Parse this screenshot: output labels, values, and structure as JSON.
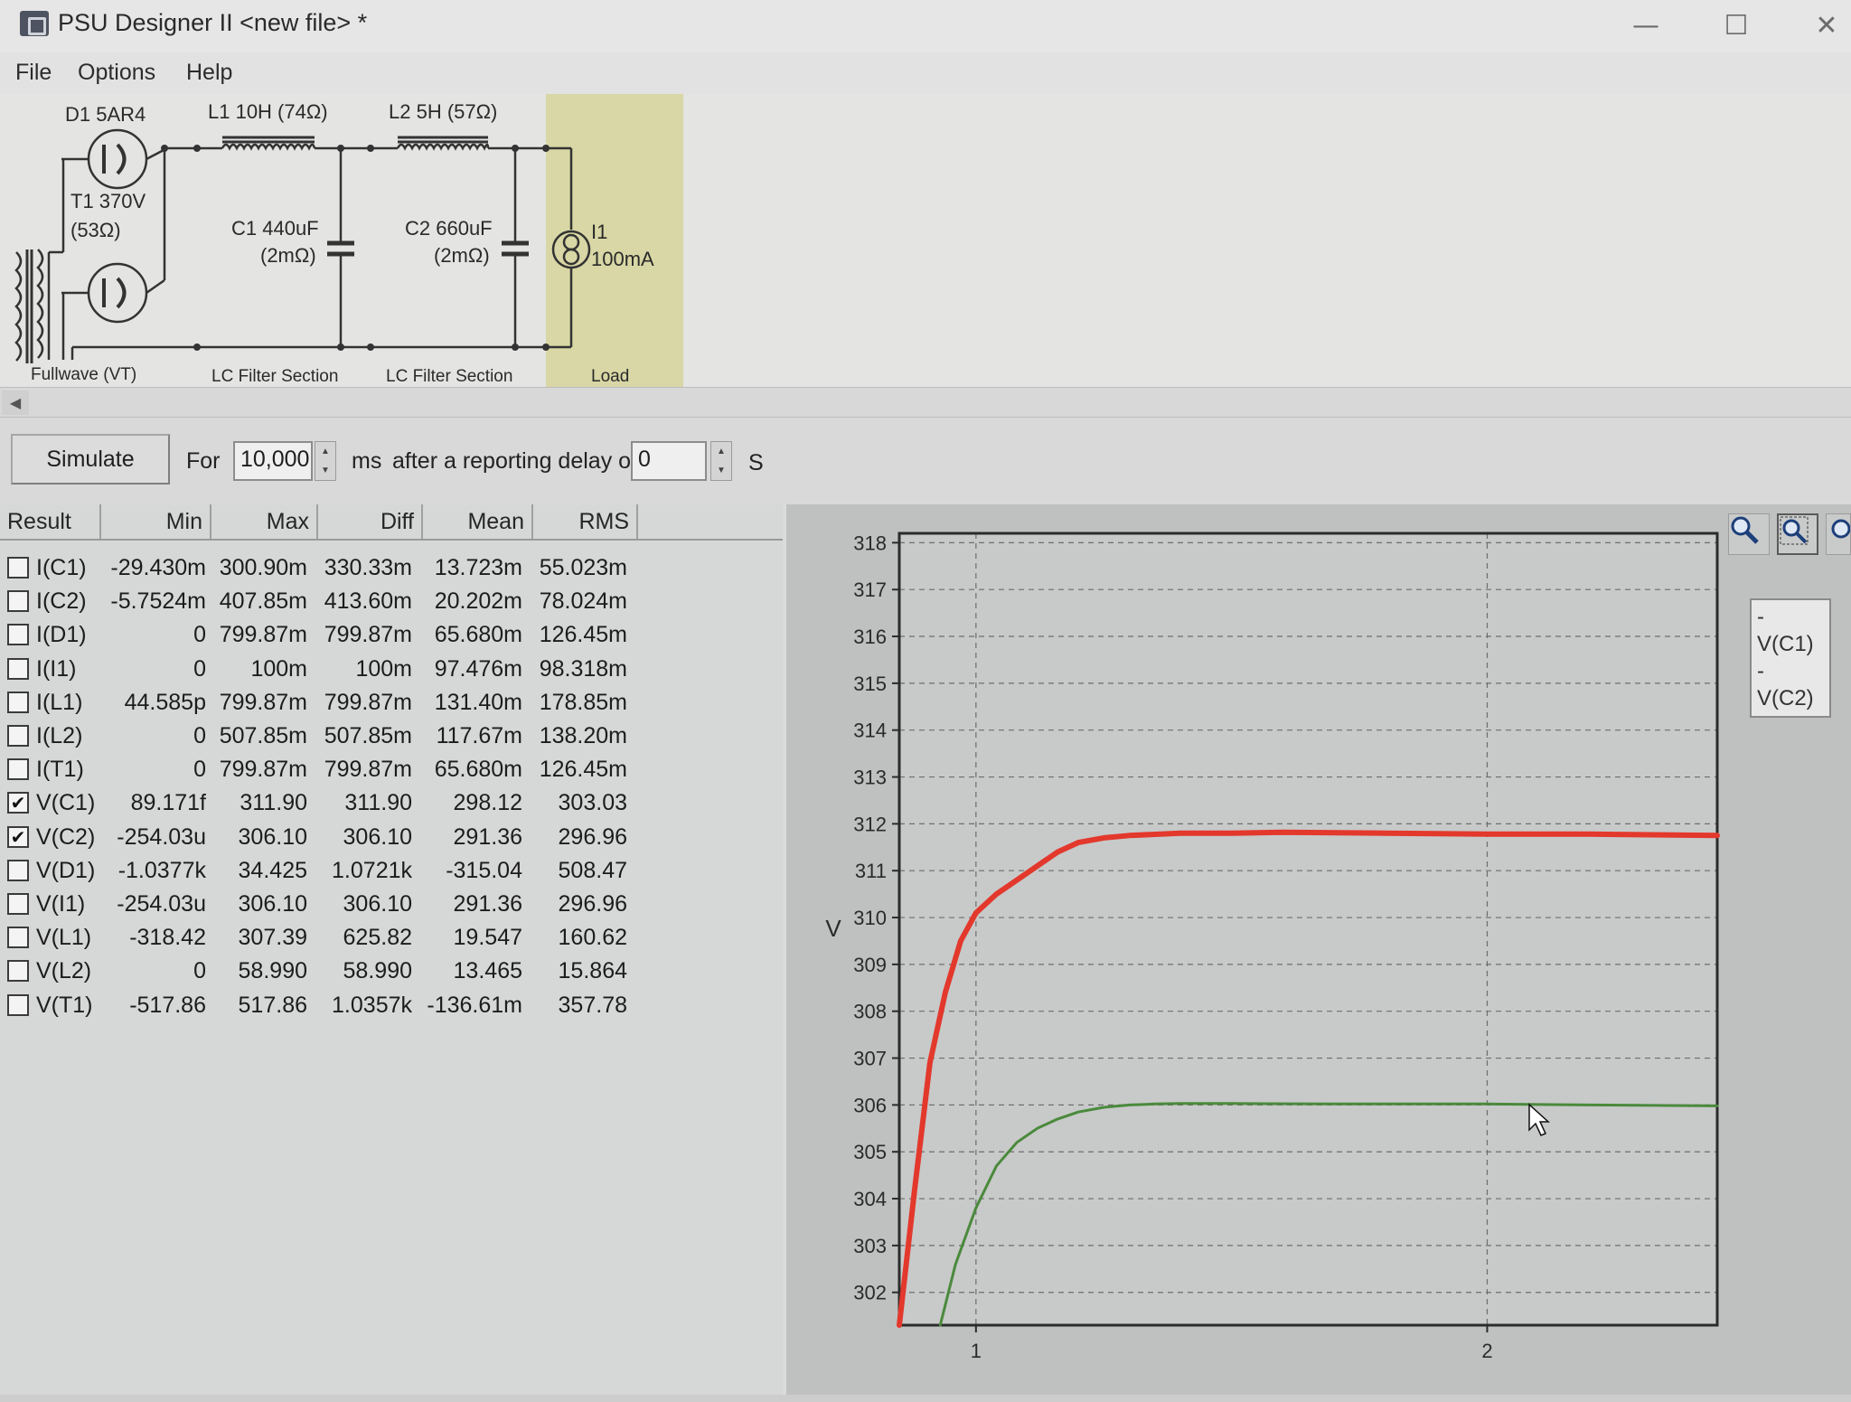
{
  "window": {
    "title": "PSU Designer II  <new file> *",
    "minimize_glyph": "—",
    "maximize_glyph": "☐",
    "close_glyph": "✕"
  },
  "menu": [
    "File",
    "Options",
    "Help"
  ],
  "schematic": {
    "d1": "D1 5AR4",
    "t1_line1": "T1 370V",
    "t1_line2": "(53Ω)",
    "l1": "L1 10H (74Ω)",
    "l2": "L2 5H (57Ω)",
    "c1_line1": "C1 440uF",
    "c1_line2": "(2mΩ)",
    "c2_line1": "C2 660uF",
    "c2_line2": "(2mΩ)",
    "i1_line1": "I1",
    "i1_line2": "100mA",
    "sections": [
      "Fullwave (VT)",
      "LC Filter Section",
      "LC Filter Section",
      "Load"
    ]
  },
  "controls": {
    "simulate_label": "Simulate",
    "for_label": "For",
    "duration_value": "10,000",
    "ms_label": "ms",
    "delay_label": "after a reporting delay of",
    "delay_value": "0",
    "s_label": "S"
  },
  "results": {
    "columns": [
      "Result",
      "Min",
      "Max",
      "Diff",
      "Mean",
      "RMS"
    ],
    "rows": [
      {
        "name": "I(C1)",
        "checked": false,
        "min": "-29.430m",
        "max": "300.90m",
        "diff": "330.33m",
        "mean": "13.723m",
        "rms": "55.023m"
      },
      {
        "name": "I(C2)",
        "checked": false,
        "min": "-5.7524m",
        "max": "407.85m",
        "diff": "413.60m",
        "mean": "20.202m",
        "rms": "78.024m"
      },
      {
        "name": "I(D1)",
        "checked": false,
        "min": "0",
        "max": "799.87m",
        "diff": "799.87m",
        "mean": "65.680m",
        "rms": "126.45m"
      },
      {
        "name": "I(I1)",
        "checked": false,
        "min": "0",
        "max": "100m",
        "diff": "100m",
        "mean": "97.476m",
        "rms": "98.318m"
      },
      {
        "name": "I(L1)",
        "checked": false,
        "min": "44.585p",
        "max": "799.87m",
        "diff": "799.87m",
        "mean": "131.40m",
        "rms": "178.85m"
      },
      {
        "name": "I(L2)",
        "checked": false,
        "min": "0",
        "max": "507.85m",
        "diff": "507.85m",
        "mean": "117.67m",
        "rms": "138.20m"
      },
      {
        "name": "I(T1)",
        "checked": false,
        "min": "0",
        "max": "799.87m",
        "diff": "799.87m",
        "mean": "65.680m",
        "rms": "126.45m"
      },
      {
        "name": "V(C1)",
        "checked": true,
        "min": "89.171f",
        "max": "311.90",
        "diff": "311.90",
        "mean": "298.12",
        "rms": "303.03"
      },
      {
        "name": "V(C2)",
        "checked": true,
        "min": "-254.03u",
        "max": "306.10",
        "diff": "306.10",
        "mean": "291.36",
        "rms": "296.96"
      },
      {
        "name": "V(D1)",
        "checked": false,
        "min": "-1.0377k",
        "max": "34.425",
        "diff": "1.0721k",
        "mean": "-315.04",
        "rms": "508.47"
      },
      {
        "name": "V(I1)",
        "checked": false,
        "min": "-254.03u",
        "max": "306.10",
        "diff": "306.10",
        "mean": "291.36",
        "rms": "296.96"
      },
      {
        "name": "V(L1)",
        "checked": false,
        "min": "-318.42",
        "max": "307.39",
        "diff": "625.82",
        "mean": "19.547",
        "rms": "160.62"
      },
      {
        "name": "V(L2)",
        "checked": false,
        "min": "0",
        "max": "58.990",
        "diff": "58.990",
        "mean": "13.465",
        "rms": "15.864"
      },
      {
        "name": "V(T1)",
        "checked": false,
        "min": "-517.86",
        "max": "517.86",
        "diff": "1.0357k",
        "mean": "-136.61m",
        "rms": "357.78"
      }
    ]
  },
  "plot": {
    "ylabel": "V",
    "legend": [
      "- V(C1)",
      "- V(C2)"
    ],
    "tools": [
      "zoom-icon",
      "zoom-box-icon",
      "zoom-reset-icon"
    ]
  },
  "chart_data": {
    "type": "line",
    "xlabel": "",
    "ylabel": "V",
    "xlim": [
      0.85,
      2.45
    ],
    "ylim": [
      301.3,
      318.2
    ],
    "x_ticks": [
      1,
      2
    ],
    "y_ticks": [
      302,
      303,
      304,
      305,
      306,
      307,
      308,
      309,
      310,
      311,
      312,
      313,
      314,
      315,
      316,
      317,
      318
    ],
    "grid": true,
    "legend_position": "right-outside",
    "series": [
      {
        "name": "V(C1)",
        "color": "#e3382c",
        "x": [
          0.85,
          0.88,
          0.91,
          0.94,
          0.97,
          1.0,
          1.04,
          1.08,
          1.12,
          1.16,
          1.2,
          1.25,
          1.3,
          1.4,
          1.5,
          1.6,
          1.8,
          2.0,
          2.2,
          2.45
        ],
        "y": [
          301.3,
          304.2,
          306.9,
          308.4,
          309.5,
          310.1,
          310.5,
          310.8,
          311.1,
          311.4,
          311.6,
          311.7,
          311.75,
          311.8,
          311.8,
          311.82,
          311.8,
          311.78,
          311.78,
          311.75
        ]
      },
      {
        "name": "V(C2)",
        "color": "#4a8a3c",
        "x": [
          0.93,
          0.96,
          1.0,
          1.04,
          1.08,
          1.12,
          1.16,
          1.2,
          1.25,
          1.3,
          1.35,
          1.4,
          1.5,
          1.7,
          2.0,
          2.2,
          2.45
        ],
        "y": [
          301.3,
          302.6,
          303.8,
          304.7,
          305.2,
          305.5,
          305.7,
          305.85,
          305.95,
          306.0,
          306.02,
          306.03,
          306.03,
          306.02,
          306.02,
          306.0,
          305.98
        ]
      }
    ]
  }
}
